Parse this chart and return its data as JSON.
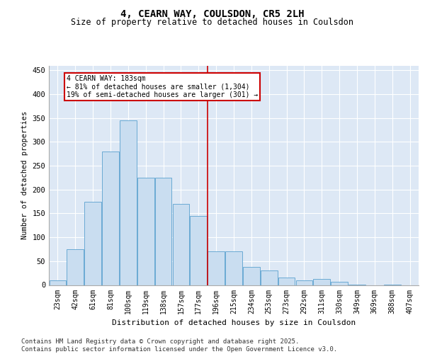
{
  "title": "4, CEARN WAY, COULSDON, CR5 2LH",
  "subtitle": "Size of property relative to detached houses in Coulsdon",
  "xlabel": "Distribution of detached houses by size in Coulsdon",
  "ylabel": "Number of detached properties",
  "categories": [
    "23sqm",
    "42sqm",
    "61sqm",
    "81sqm",
    "100sqm",
    "119sqm",
    "138sqm",
    "157sqm",
    "177sqm",
    "196sqm",
    "215sqm",
    "234sqm",
    "253sqm",
    "273sqm",
    "292sqm",
    "311sqm",
    "330sqm",
    "349sqm",
    "369sqm",
    "388sqm",
    "407sqm"
  ],
  "values": [
    10,
    75,
    175,
    280,
    345,
    225,
    225,
    170,
    145,
    70,
    70,
    38,
    30,
    15,
    10,
    13,
    7,
    1,
    0,
    1,
    0
  ],
  "bar_color": "#c9ddf0",
  "bar_edge_color": "#6aaad4",
  "background_color": "#dde8f5",
  "grid_color": "#ffffff",
  "annotation_text": "4 CEARN WAY: 183sqm\n← 81% of detached houses are smaller (1,304)\n19% of semi-detached houses are larger (301) →",
  "vline_x_idx": 8.5,
  "vline_color": "#cc0000",
  "annotation_box_color": "#cc0000",
  "ylim": [
    0,
    460
  ],
  "yticks": [
    0,
    50,
    100,
    150,
    200,
    250,
    300,
    350,
    400,
    450
  ],
  "footer": "Contains HM Land Registry data © Crown copyright and database right 2025.\nContains public sector information licensed under the Open Government Licence v3.0.",
  "title_fontsize": 10,
  "subtitle_fontsize": 8.5,
  "xlabel_fontsize": 8,
  "ylabel_fontsize": 7.5,
  "tick_fontsize": 7,
  "footer_fontsize": 6.5
}
